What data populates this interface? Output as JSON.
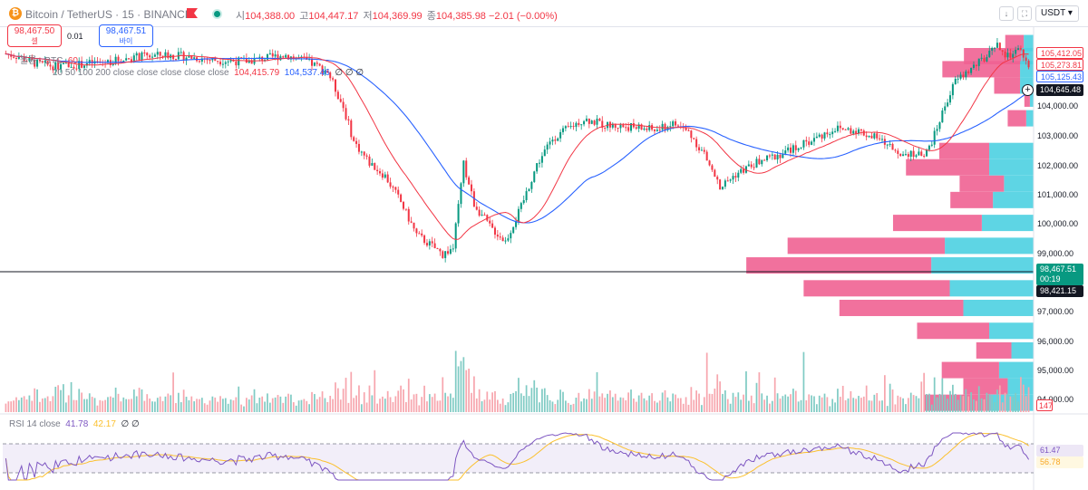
{
  "header": {
    "symbol_icon": "bitcoin-icon",
    "symbol": "Bitcoin / TetherUS · 15 · BINANCE",
    "ohlc": [
      {
        "key": "시",
        "value": "104,388.00"
      },
      {
        "key": "고",
        "value": "104,447.17"
      },
      {
        "key": "저",
        "value": "104,369.99"
      },
      {
        "key": "종",
        "value": "104,385.98"
      }
    ],
    "change": "−2.01 (−0.00%)",
    "currency": "USDT"
  },
  "trade": {
    "sell_price": "98,467.50",
    "sell_label": "셀",
    "spread": "0.01",
    "buy_price": "98,467.51",
    "buy_label": "바이"
  },
  "legends": {
    "volume_fragment": "볼륨 · BTC",
    "volume_value": "60",
    "ma_fragment": "20 50 100 200 close close close close close",
    "ma_values": [
      "104,415.79",
      "104,537.46",
      "∅",
      "∅",
      "∅"
    ],
    "rsi_label": "RSI 14 close",
    "rsi_value": "41.78",
    "rsi_ma": "42.17",
    "rsi_extra": "∅ ∅"
  },
  "price_tags": {
    "t1": "105,412.05",
    "t2": "105,273.81",
    "t3": "105,125.43",
    "current": "104,645.48",
    "last_price": "98,467.51",
    "countdown": "00:19",
    "cross": "98,421.15",
    "volume": "147",
    "rsi": "61.47",
    "rsi_ma": "56.78"
  },
  "colors": {
    "up": "#089981",
    "down": "#f23645",
    "ma_fast": "#f23645",
    "ma_slow": "#2962ff",
    "profile_sell": "#f06292",
    "profile_buy": "#4dd0e1",
    "rsi_line": "#7e57c2",
    "rsi_ma_line": "#fbc02d"
  },
  "chart_data": {
    "type": "candlestick",
    "ylim": [
      94000,
      105800
    ],
    "price_axis_ticks": [
      "104,000.00",
      "103,000.00",
      "102,000.00",
      "101,000.00",
      "100,000.00",
      "99,000.00",
      "97,000.00",
      "96,000.00",
      "95,000.00",
      "94,000.00"
    ],
    "price_path": [
      [
        0,
        105000
      ],
      [
        6,
        104900
      ],
      [
        12,
        104700
      ],
      [
        20,
        104600
      ],
      [
        28,
        104650
      ],
      [
        40,
        104750
      ],
      [
        52,
        104900
      ],
      [
        62,
        104950
      ],
      [
        70,
        104900
      ],
      [
        80,
        104800
      ],
      [
        92,
        104750
      ],
      [
        100,
        104850
      ],
      [
        108,
        104950
      ],
      [
        116,
        104750
      ],
      [
        124,
        104450
      ],
      [
        130,
        103350
      ],
      [
        134,
        102300
      ],
      [
        140,
        101650
      ],
      [
        146,
        101250
      ],
      [
        152,
        100450
      ],
      [
        158,
        99450
      ],
      [
        164,
        99100
      ],
      [
        168,
        98850
      ],
      [
        172,
        99050
      ],
      [
        176,
        101600
      ],
      [
        180,
        100400
      ],
      [
        186,
        99700
      ],
      [
        192,
        99250
      ],
      [
        198,
        100300
      ],
      [
        204,
        101600
      ],
      [
        210,
        102400
      ],
      [
        216,
        102700
      ],
      [
        222,
        103000
      ],
      [
        230,
        102800
      ],
      [
        240,
        102750
      ],
      [
        250,
        102650
      ],
      [
        256,
        102850
      ],
      [
        262,
        102600
      ],
      [
        268,
        101900
      ],
      [
        274,
        100900
      ],
      [
        280,
        101300
      ],
      [
        288,
        101650
      ],
      [
        298,
        101950
      ],
      [
        308,
        102300
      ],
      [
        318,
        102700
      ],
      [
        326,
        102650
      ],
      [
        334,
        102400
      ],
      [
        342,
        102000
      ],
      [
        348,
        101950
      ],
      [
        352,
        101800
      ],
      [
        356,
        102500
      ],
      [
        360,
        103400
      ],
      [
        364,
        104150
      ],
      [
        368,
        104400
      ],
      [
        372,
        104650
      ],
      [
        376,
        104900
      ],
      [
        380,
        105200
      ],
      [
        384,
        104900
      ],
      [
        388,
        105100
      ],
      [
        392,
        104650
      ]
    ],
    "volume_profile": [
      {
        "price": 105300,
        "sell": 0.1,
        "buy": 0.08
      },
      {
        "price": 104900,
        "sell": 0.31,
        "buy": 0.1
      },
      {
        "price": 104500,
        "sell": 0.42,
        "buy": 0.11
      },
      {
        "price": 104000,
        "sell": 0.14,
        "buy": 0.11
      },
      {
        "price": 103600,
        "sell": 0.03,
        "buy": 0.03
      },
      {
        "price": 103000,
        "sell": 0.1,
        "buy": 0.06
      },
      {
        "price": 102000,
        "sell": 0.27,
        "buy": 0.36
      },
      {
        "price": 101500,
        "sell": 0.45,
        "buy": 0.36
      },
      {
        "price": 101000,
        "sell": 0.24,
        "buy": 0.24
      },
      {
        "price": 100500,
        "sell": 0.23,
        "buy": 0.33
      },
      {
        "price": 99800,
        "sell": 0.48,
        "buy": 0.42
      },
      {
        "price": 99100,
        "sell": 0.85,
        "buy": 0.72
      },
      {
        "price": 98500,
        "sell": 1.0,
        "buy": 0.83
      },
      {
        "price": 97800,
        "sell": 0.79,
        "buy": 0.68
      },
      {
        "price": 97200,
        "sell": 0.67,
        "buy": 0.57
      },
      {
        "price": 96500,
        "sell": 0.39,
        "buy": 0.36
      },
      {
        "price": 95900,
        "sell": 0.19,
        "buy": 0.18
      },
      {
        "price": 95300,
        "sell": 0.31,
        "buy": 0.28
      },
      {
        "price": 94800,
        "sell": 0.24,
        "buy": 0.21
      },
      {
        "price": 94300,
        "sell": 0.36,
        "buy": 0.35
      }
    ],
    "rsi_range": [
      20,
      80
    ]
  }
}
